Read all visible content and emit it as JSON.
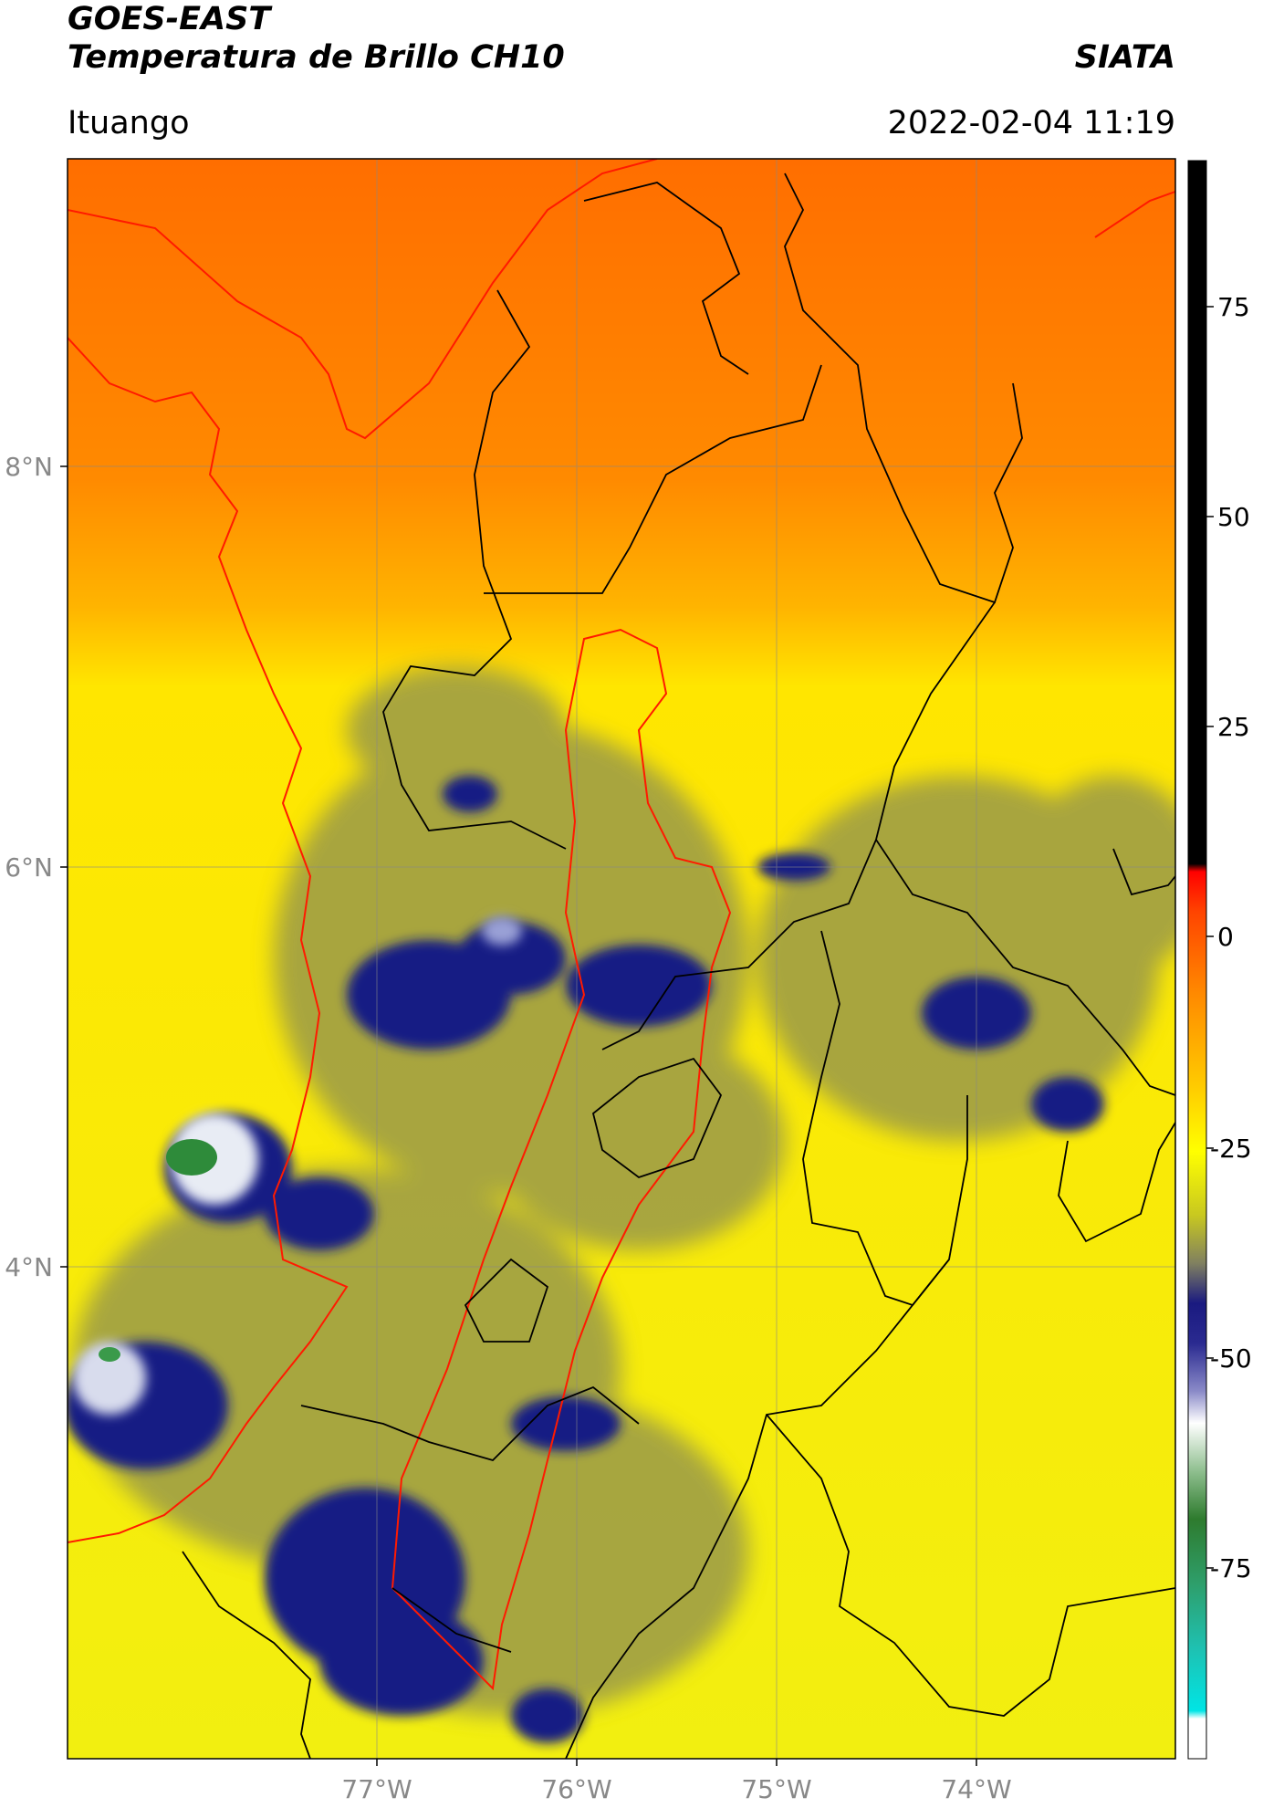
{
  "header": {
    "satellite": "GOES-EAST",
    "product": "Temperatura de Brillo CH10",
    "org": "SIATA",
    "region": "Ituango",
    "datetime": "2022-02-04 11:19"
  },
  "map": {
    "lat_labels": [
      "8°N",
      "6°N",
      "4°N"
    ],
    "lon_labels": [
      "77°W",
      "76°W",
      "75°W",
      "74°W"
    ],
    "gridlines": true
  },
  "colorbar": {
    "ticks": [
      "75",
      "50",
      "25",
      "0",
      "-25",
      "-50",
      "-75"
    ],
    "colors": {
      "black": "#000000",
      "red": "#ff1a00",
      "orange": "#ff7f00",
      "yellow": "#ffee00",
      "olive": "#8a8a3a",
      "navy": "#141a80",
      "white": "#ffffff",
      "green": "#2e8b3a",
      "teal": "#1fb59a",
      "cyan": "#00e5e5"
    }
  }
}
